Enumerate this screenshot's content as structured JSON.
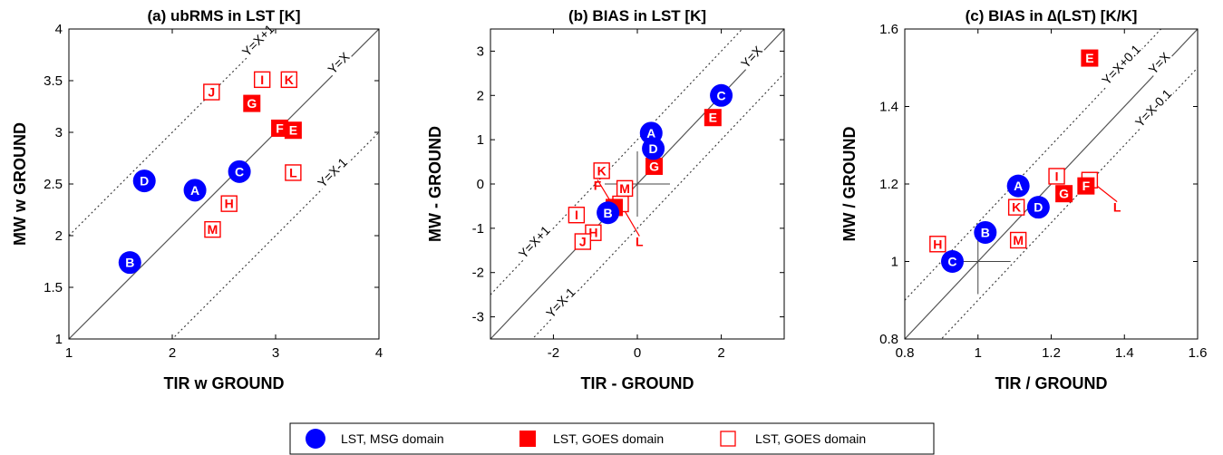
{
  "colors": {
    "msg": "#0000ff",
    "goes": "#ff0000",
    "axis": "#000000",
    "line": "#555555"
  },
  "legend": [
    {
      "label": "LST, MSG domain",
      "style": "blue-circle"
    },
    {
      "label": "LST, GOES domain",
      "style": "red-filled-square"
    },
    {
      "label": "LST, GOES domain",
      "style": "red-open-square"
    }
  ],
  "chart_data": [
    {
      "type": "scatter",
      "title": "(a) ubRMS in LST [K]",
      "xlabel": "TIR w GROUND",
      "ylabel": "MW w GROUND",
      "xlim": [
        1,
        4
      ],
      "ylim": [
        1,
        4
      ],
      "xticks": [
        1,
        2,
        3,
        4
      ],
      "yticks": [
        1,
        1.5,
        2,
        2.5,
        3,
        3.5,
        4
      ],
      "ytick_labels": [
        "1",
        "1.5",
        "2",
        "2.5",
        "3",
        "3.5",
        "4"
      ],
      "lines": [
        {
          "label": "Y=X",
          "offset": 0
        },
        {
          "label": "Y=X+1",
          "offset": 1
        },
        {
          "label": "Y=X-1",
          "offset": -1
        }
      ],
      "points": [
        {
          "label": "A",
          "x": 2.22,
          "y": 2.44,
          "style": "msg"
        },
        {
          "label": "B",
          "x": 1.59,
          "y": 1.74,
          "style": "msg"
        },
        {
          "label": "C",
          "x": 2.65,
          "y": 2.62,
          "style": "msg"
        },
        {
          "label": "D",
          "x": 1.73,
          "y": 2.53,
          "style": "msg"
        },
        {
          "label": "E",
          "x": 3.17,
          "y": 3.02,
          "style": "goes-filled"
        },
        {
          "label": "F",
          "x": 3.04,
          "y": 3.04,
          "style": "goes-filled"
        },
        {
          "label": "G",
          "x": 2.77,
          "y": 3.28,
          "style": "goes-filled"
        },
        {
          "label": "H",
          "x": 2.55,
          "y": 2.31,
          "style": "goes-open"
        },
        {
          "label": "I",
          "x": 2.87,
          "y": 3.51,
          "style": "goes-open"
        },
        {
          "label": "J",
          "x": 2.38,
          "y": 3.39,
          "style": "goes-open"
        },
        {
          "label": "K",
          "x": 3.13,
          "y": 3.51,
          "style": "goes-open"
        },
        {
          "label": "L",
          "x": 3.17,
          "y": 2.61,
          "style": "goes-open"
        },
        {
          "label": "M",
          "x": 2.39,
          "y": 2.06,
          "style": "goes-open"
        }
      ]
    },
    {
      "type": "scatter",
      "title": "(b) BIAS in LST [K]",
      "xlabel": "TIR - GROUND",
      "ylabel": "MW - GROUND",
      "xlim": [
        -3.5,
        3.5
      ],
      "ylim": [
        -3.5,
        3.5
      ],
      "xticks": [
        -2,
        0,
        2
      ],
      "yticks": [
        -3,
        -2,
        -1,
        0,
        1,
        2,
        3
      ],
      "ytick_labels": [
        "-3",
        "-2",
        "-1",
        "0",
        "1",
        "2",
        "3"
      ],
      "lines": [
        {
          "label": "Y=X",
          "offset": 0
        },
        {
          "label": "Y=X+1",
          "offset": 1
        },
        {
          "label": "Y=X-1",
          "offset": -1
        }
      ],
      "crosshair": {
        "x": 0,
        "y": 0
      },
      "points": [
        {
          "label": "A",
          "x": 0.33,
          "y": 1.15,
          "style": "msg"
        },
        {
          "label": "B",
          "x": -0.7,
          "y": -0.65,
          "style": "msg"
        },
        {
          "label": "C",
          "x": 2.0,
          "y": 2.0,
          "style": "msg"
        },
        {
          "label": "D",
          "x": 0.38,
          "y": 0.8,
          "style": "msg"
        },
        {
          "label": "E",
          "x": 1.8,
          "y": 1.5,
          "style": "goes-filled"
        },
        {
          "label": "F",
          "x": -0.55,
          "y": -0.53,
          "style": "goes-filled",
          "tag": [
            -0.95,
            -0.03
          ]
        },
        {
          "label": "G",
          "x": 0.4,
          "y": 0.4,
          "style": "goes-filled"
        },
        {
          "label": "H",
          "x": -1.05,
          "y": -1.1,
          "style": "goes-open"
        },
        {
          "label": "I",
          "x": -1.45,
          "y": -0.7,
          "style": "goes-open"
        },
        {
          "label": "J",
          "x": -1.3,
          "y": -1.3,
          "style": "goes-open"
        },
        {
          "label": "K",
          "x": -0.85,
          "y": 0.3,
          "style": "goes-open"
        },
        {
          "label": "L",
          "x": -0.4,
          "y": -0.45,
          "style": "goes-open",
          "tag": [
            0.05,
            -1.3
          ]
        },
        {
          "label": "M",
          "x": -0.3,
          "y": -0.1,
          "style": "goes-open"
        }
      ]
    },
    {
      "type": "scatter",
      "title": "(c) BIAS in ∆(LST) [K/K]",
      "xlabel": "TIR / GROUND",
      "ylabel": "MW / GROUND",
      "xlim": [
        0.8,
        1.6
      ],
      "ylim": [
        0.8,
        1.6
      ],
      "xticks": [
        0.8,
        1,
        1.2,
        1.4,
        1.6
      ],
      "yticks": [
        0.8,
        1,
        1.2,
        1.4,
        1.6
      ],
      "ytick_labels": [
        "0.8",
        "1",
        "1.2",
        "1.4",
        "1.6"
      ],
      "lines": [
        {
          "label": "Y=X",
          "offset": 0
        },
        {
          "label": "Y=X+0.1",
          "offset": 0.1
        },
        {
          "label": "Y=X-0.1",
          "offset": -0.1
        }
      ],
      "crosshair": {
        "x": 1,
        "y": 1
      },
      "points": [
        {
          "label": "A",
          "x": 1.11,
          "y": 1.195,
          "style": "msg"
        },
        {
          "label": "B",
          "x": 1.02,
          "y": 1.075,
          "style": "msg"
        },
        {
          "label": "C",
          "x": 0.93,
          "y": 1.0,
          "style": "msg"
        },
        {
          "label": "D",
          "x": 1.165,
          "y": 1.14,
          "style": "msg"
        },
        {
          "label": "E",
          "x": 1.305,
          "y": 1.525,
          "style": "goes-filled"
        },
        {
          "label": "F",
          "x": 1.295,
          "y": 1.195,
          "style": "goes-filled"
        },
        {
          "label": "G",
          "x": 1.235,
          "y": 1.175,
          "style": "goes-filled"
        },
        {
          "label": "H",
          "x": 0.89,
          "y": 1.045,
          "style": "goes-open"
        },
        {
          "label": "I",
          "x": 1.215,
          "y": 1.22,
          "style": "goes-open"
        },
        {
          "label": "K",
          "x": 1.105,
          "y": 1.14,
          "style": "goes-open"
        },
        {
          "label": "L",
          "x": 1.305,
          "y": 1.21,
          "style": "goes-open",
          "tag": [
            1.38,
            1.14
          ]
        },
        {
          "label": "M",
          "x": 1.11,
          "y": 1.055,
          "style": "goes-open"
        }
      ]
    }
  ]
}
